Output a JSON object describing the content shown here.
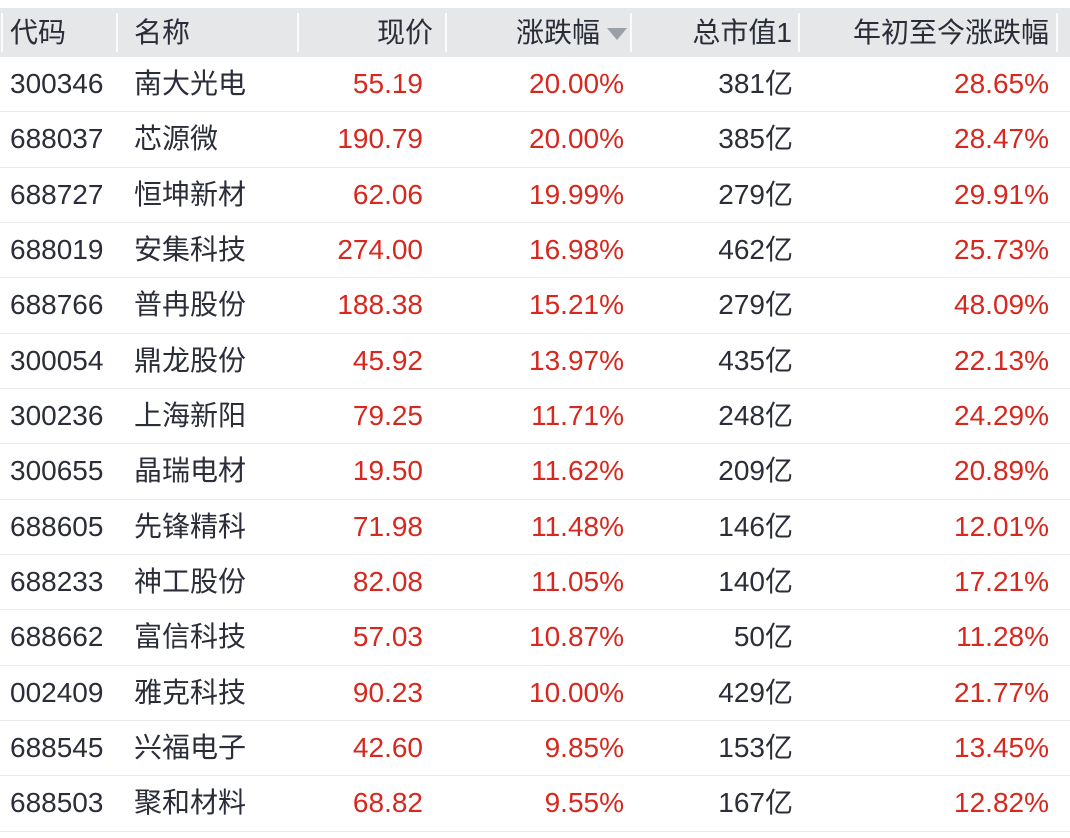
{
  "colors": {
    "up_red": "#d6281e",
    "text_dark": "#2b2e39",
    "header_bg": "#e6e7e9",
    "row_divider": "#eaeaec",
    "sort_icon_gray": "#9aa0a8"
  },
  "table": {
    "columns": [
      {
        "key": "code",
        "label": "代码"
      },
      {
        "key": "name",
        "label": "名称"
      },
      {
        "key": "price",
        "label": "现价"
      },
      {
        "key": "change",
        "label": "涨跌幅"
      },
      {
        "key": "mcap",
        "label": "总市值1"
      },
      {
        "key": "ytd",
        "label": "年初至今涨跌幅"
      }
    ],
    "sort": {
      "column": "涨跌幅",
      "direction": "desc",
      "icon": "triangle-down-icon"
    },
    "rows": [
      {
        "code": "300346",
        "name": "南大光电",
        "price": "55.19",
        "change": "20.00%",
        "mcap": "381亿",
        "ytd": "28.65%"
      },
      {
        "code": "688037",
        "name": "芯源微",
        "price": "190.79",
        "change": "20.00%",
        "mcap": "385亿",
        "ytd": "28.47%"
      },
      {
        "code": "688727",
        "name": "恒坤新材",
        "price": "62.06",
        "change": "19.99%",
        "mcap": "279亿",
        "ytd": "29.91%"
      },
      {
        "code": "688019",
        "name": "安集科技",
        "price": "274.00",
        "change": "16.98%",
        "mcap": "462亿",
        "ytd": "25.73%"
      },
      {
        "code": "688766",
        "name": "普冉股份",
        "price": "188.38",
        "change": "15.21%",
        "mcap": "279亿",
        "ytd": "48.09%"
      },
      {
        "code": "300054",
        "name": "鼎龙股份",
        "price": "45.92",
        "change": "13.97%",
        "mcap": "435亿",
        "ytd": "22.13%"
      },
      {
        "code": "300236",
        "name": "上海新阳",
        "price": "79.25",
        "change": "11.71%",
        "mcap": "248亿",
        "ytd": "24.29%"
      },
      {
        "code": "300655",
        "name": "晶瑞电材",
        "price": "19.50",
        "change": "11.62%",
        "mcap": "209亿",
        "ytd": "20.89%"
      },
      {
        "code": "688605",
        "name": "先锋精科",
        "price": "71.98",
        "change": "11.48%",
        "mcap": "146亿",
        "ytd": "12.01%"
      },
      {
        "code": "688233",
        "name": "神工股份",
        "price": "82.08",
        "change": "11.05%",
        "mcap": "140亿",
        "ytd": "17.21%"
      },
      {
        "code": "688662",
        "name": "富信科技",
        "price": "57.03",
        "change": "10.87%",
        "mcap": "50亿",
        "ytd": "11.28%"
      },
      {
        "code": "002409",
        "name": "雅克科技",
        "price": "90.23",
        "change": "10.00%",
        "mcap": "429亿",
        "ytd": "21.77%"
      },
      {
        "code": "688545",
        "name": "兴福电子",
        "price": "42.60",
        "change": "9.85%",
        "mcap": "153亿",
        "ytd": "13.45%"
      },
      {
        "code": "688503",
        "name": "聚和材料",
        "price": "68.82",
        "change": "9.55%",
        "mcap": "167亿",
        "ytd": "12.82%"
      }
    ]
  }
}
